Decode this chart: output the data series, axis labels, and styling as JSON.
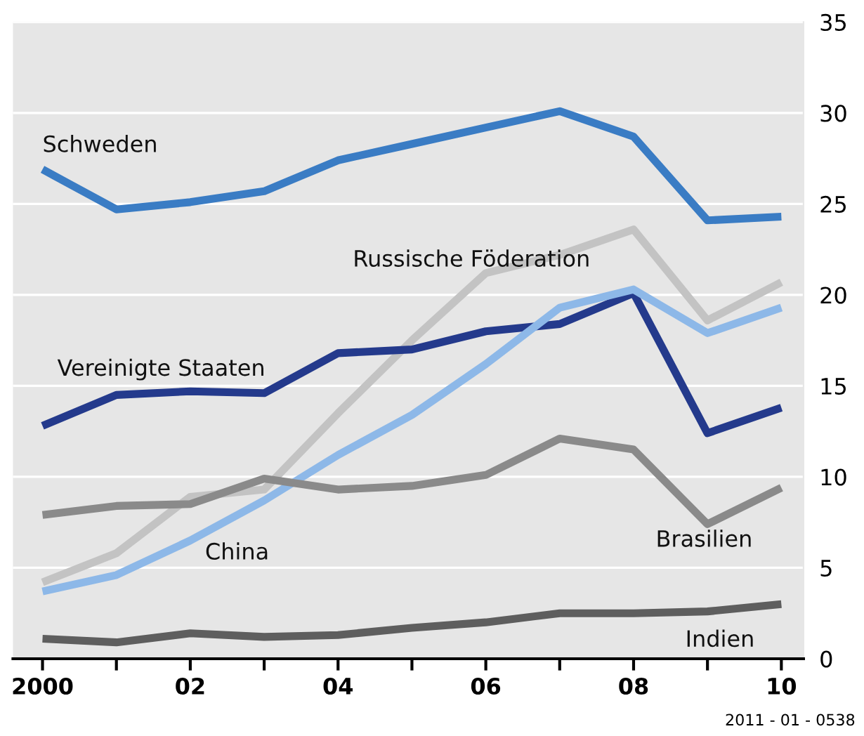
{
  "chart_data": {
    "type": "line",
    "x": [
      2000,
      2001,
      2002,
      2003,
      2004,
      2005,
      2006,
      2007,
      2008,
      2009,
      2010
    ],
    "series": [
      {
        "name": "Schweden",
        "color": "#3a7cc4",
        "values": [
          26.9,
          24.7,
          25.1,
          25.7,
          27.4,
          28.3,
          29.2,
          30.1,
          28.7,
          24.1,
          24.3
        ]
      },
      {
        "name": "Russische Föderation",
        "color": "#c3c3c3",
        "values": [
          4.2,
          5.8,
          8.9,
          9.3,
          13.5,
          17.5,
          21.2,
          22.2,
          23.6,
          18.6,
          20.7
        ]
      },
      {
        "name": "Vereinigte Staaten",
        "color": "#243a8c",
        "values": [
          12.8,
          14.5,
          14.7,
          14.6,
          16.8,
          17.0,
          18.0,
          18.4,
          20.1,
          12.4,
          13.8
        ]
      },
      {
        "name": "China",
        "color": "#8db8e8",
        "values": [
          3.7,
          4.6,
          6.5,
          8.7,
          11.2,
          13.4,
          16.2,
          19.3,
          20.3,
          17.9,
          19.3
        ]
      },
      {
        "name": "Brasilien",
        "color": "#8a8a8a",
        "values": [
          7.9,
          8.4,
          8.5,
          9.9,
          9.3,
          9.5,
          10.1,
          12.1,
          11.5,
          7.4,
          9.4
        ]
      },
      {
        "name": "Indien",
        "color": "#5e5e5e",
        "values": [
          1.1,
          0.9,
          1.4,
          1.2,
          1.3,
          1.7,
          2.0,
          2.5,
          2.5,
          2.6,
          3.0
        ]
      }
    ],
    "xlim": [
      1999.6,
      2010.3
    ],
    "xticks": [
      2000,
      {
        "value": 2001,
        "label": null
      },
      {
        "value": 2002,
        "label": "02"
      },
      {
        "value": 2003,
        "label": null
      },
      {
        "value": 2004,
        "label": "04"
      },
      {
        "value": 2005,
        "label": null
      },
      {
        "value": 2006,
        "label": "06"
      },
      {
        "value": 2007,
        "label": null
      },
      {
        "value": 2008,
        "label": "08"
      },
      {
        "value": 2009,
        "label": null
      },
      {
        "value": 2010,
        "label": "10"
      }
    ],
    "ylim": [
      0,
      35
    ],
    "yticks": [
      0,
      5,
      10,
      15,
      20,
      25,
      30,
      35
    ],
    "grid": "y",
    "legend": false,
    "marker": "none",
    "line_style": "solid",
    "annotations": [
      "2011 - 01 - 0538"
    ]
  }
}
